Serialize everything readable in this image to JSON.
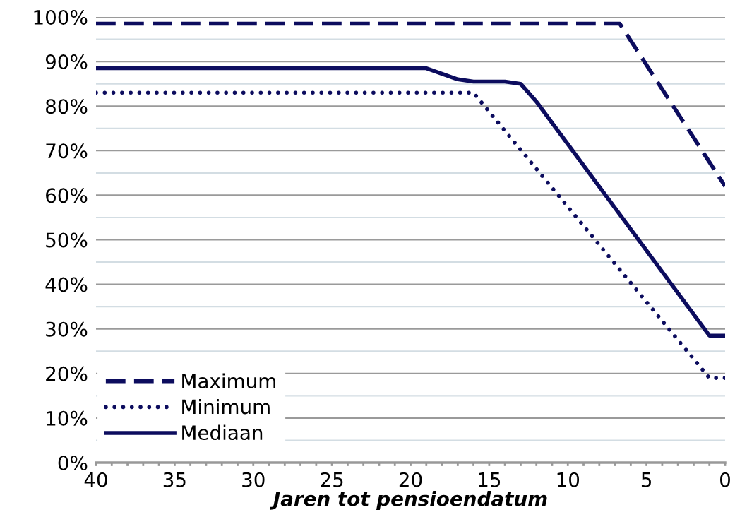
{
  "chart_data": {
    "type": "line",
    "xlabel": "Jaren tot pensioendatum",
    "series": [
      {
        "name": "Maximum",
        "color": "#0c0c5e",
        "line_style": "dashed",
        "x": [
          40,
          6.7,
          0
        ],
        "values": [
          98.5,
          98.5,
          62
        ]
      },
      {
        "name": "Minimum",
        "color": "#0c0c5e",
        "line_style": "dotted",
        "x": [
          40,
          16,
          1,
          0
        ],
        "values": [
          83,
          83,
          19,
          19
        ]
      },
      {
        "name": "Mediaan",
        "color": "#0c0c5e",
        "line_style": "solid",
        "x": [
          40,
          19,
          17,
          16,
          14,
          13,
          12,
          1,
          0
        ],
        "values": [
          88.5,
          88.5,
          86,
          85.5,
          85.5,
          85,
          81,
          28.5,
          28.5
        ]
      }
    ],
    "xlim": [
      40,
      0
    ],
    "ylim": [
      0,
      100
    ],
    "xticks": [
      40,
      {
        "value": 39,
        "label": null
      },
      {
        "value": 38,
        "label": null
      },
      {
        "value": 37,
        "label": null
      },
      {
        "value": 36,
        "label": null
      },
      35,
      {
        "value": 34,
        "label": null
      },
      {
        "value": 33,
        "label": null
      },
      {
        "value": 32,
        "label": null
      },
      {
        "value": 31,
        "label": null
      },
      30,
      {
        "value": 29,
        "label": null
      },
      {
        "value": 28,
        "label": null
      },
      {
        "value": 27,
        "label": null
      },
      {
        "value": 26,
        "label": null
      },
      25,
      {
        "value": 24,
        "label": null
      },
      {
        "value": 23,
        "label": null
      },
      {
        "value": 22,
        "label": null
      },
      {
        "value": 21,
        "label": null
      },
      20,
      {
        "value": 19,
        "label": null
      },
      {
        "value": 18,
        "label": null
      },
      {
        "value": 17,
        "label": null
      },
      {
        "value": 16,
        "label": null
      },
      15,
      {
        "value": 14,
        "label": null
      },
      {
        "value": 13,
        "label": null
      },
      {
        "value": 12,
        "label": null
      },
      {
        "value": 11,
        "label": null
      },
      10,
      {
        "value": 9,
        "label": null
      },
      {
        "value": 8,
        "label": null
      },
      {
        "value": 7,
        "label": null
      },
      {
        "value": 6,
        "label": null
      },
      5,
      {
        "value": 4,
        "label": null
      },
      {
        "value": 3,
        "label": null
      },
      {
        "value": 2,
        "label": null
      },
      {
        "value": 1,
        "label": null
      },
      0
    ],
    "yticks": [
      {
        "value": 0,
        "label": "0%"
      },
      {
        "value": 5,
        "label": null
      },
      {
        "value": 10,
        "label": "10%"
      },
      {
        "value": 15,
        "label": null
      },
      {
        "value": 20,
        "label": "20%"
      },
      {
        "value": 25,
        "label": null
      },
      {
        "value": 30,
        "label": "30%"
      },
      {
        "value": 35,
        "label": null
      },
      {
        "value": 40,
        "label": "40%"
      },
      {
        "value": 45,
        "label": null
      },
      {
        "value": 50,
        "label": "50%"
      },
      {
        "value": 55,
        "label": null
      },
      {
        "value": 60,
        "label": "60%"
      },
      {
        "value": 65,
        "label": null
      },
      {
        "value": 70,
        "label": "70%"
      },
      {
        "value": 75,
        "label": null
      },
      {
        "value": 80,
        "label": "80%"
      },
      {
        "value": 85,
        "label": null
      },
      {
        "value": 90,
        "label": "90%"
      },
      {
        "value": 95,
        "label": null
      },
      {
        "value": 100,
        "label": "100%"
      }
    ],
    "grid": "y",
    "legend": "bottom left"
  }
}
